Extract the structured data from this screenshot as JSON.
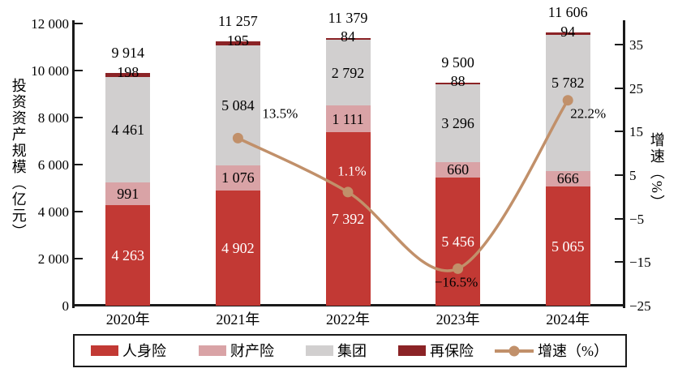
{
  "chart_data": {
    "type": "bar",
    "stacked": true,
    "grid": false,
    "categories": [
      "2020年",
      "2021年",
      "2022年",
      "2023年",
      "2024年"
    ],
    "series": [
      {
        "name": "人身险",
        "color": "#C23934",
        "label_color": "#FFFFFF",
        "values": [
          4263,
          4902,
          7392,
          5456,
          5065
        ],
        "labels": [
          "4 263",
          "4 902",
          "7 392",
          "5 456",
          "5 065"
        ]
      },
      {
        "name": "财产险",
        "color": "#D9A3A6",
        "label_color": "#000000",
        "values": [
          991,
          1076,
          1111,
          660,
          666
        ],
        "labels": [
          "991",
          "1 076",
          "1 111",
          "660",
          "666"
        ]
      },
      {
        "name": "集团",
        "color": "#D1CFCF",
        "label_color": "#000000",
        "values": [
          4461,
          5084,
          2792,
          3296,
          5782
        ],
        "labels": [
          "4 461",
          "5 084",
          "2 792",
          "3 296",
          "5 782"
        ]
      },
      {
        "name": "再保险",
        "color": "#8B2326",
        "label_color": "#000000",
        "values": [
          198,
          195,
          84,
          88,
          94
        ],
        "labels": [
          "198",
          "195",
          "84",
          "88",
          "94"
        ]
      }
    ],
    "totals": [
      9914,
      11257,
      11379,
      9500,
      11606
    ],
    "total_labels": [
      "9 914",
      "11 257",
      "11 379",
      "9 500",
      "11 606"
    ],
    "line_series": {
      "name": "增速（%）",
      "color": "#C1906A",
      "categories": [
        "2021年",
        "2022年",
        "2023年",
        "2024年"
      ],
      "values": [
        13.5,
        1.1,
        -16.5,
        22.2
      ],
      "labels": [
        "13.5%",
        "1.1%",
        "−16.5%",
        "22.2%"
      ],
      "label_colors": [
        "#000000",
        "#FFFFFF",
        "#000000",
        "#000000"
      ]
    },
    "left_axis": {
      "title": "投资资产规模（亿元）",
      "min": 0,
      "max": 12000,
      "tick_step": 2000,
      "tick_labels": [
        "0",
        "2 000",
        "4 000",
        "6 000",
        "8 000",
        "10 000",
        "12 000"
      ]
    },
    "right_axis": {
      "title": "增速（%）",
      "min": -25,
      "max": 35,
      "tick_step": 10,
      "tick_labels": [
        "−25",
        "−15",
        "−5",
        "5",
        "15",
        "25",
        "35"
      ]
    },
    "legend": {
      "items": [
        {
          "label": "人身险",
          "type": "rect",
          "color": "#C23934"
        },
        {
          "label": "财产险",
          "type": "rect",
          "color": "#D9A3A6"
        },
        {
          "label": "集团",
          "type": "rect",
          "color": "#D1CFCF"
        },
        {
          "label": "再保险",
          "type": "rect",
          "color": "#8B2326"
        },
        {
          "label": "增速（%）",
          "type": "line",
          "color": "#C1906A"
        }
      ],
      "position": "bottom"
    }
  }
}
